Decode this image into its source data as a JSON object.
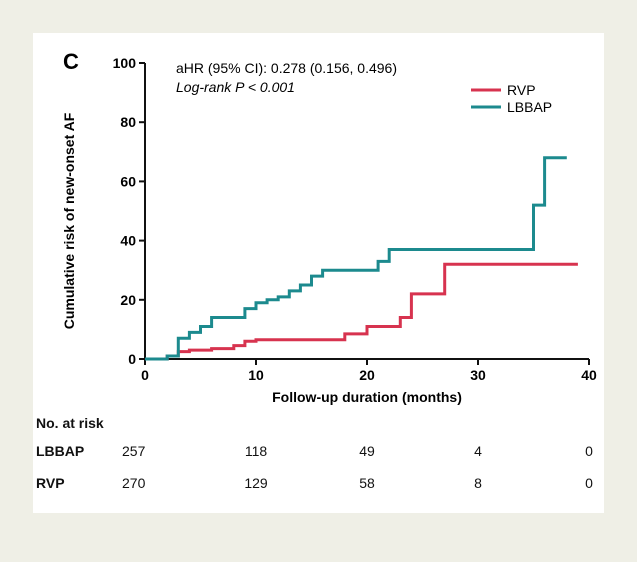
{
  "chart_data": {
    "type": "line",
    "step": true,
    "panel_label": "C",
    "annotation": {
      "hr": "aHR (95% CI): 0.278 (0.156, 0.496)",
      "p": "Log-rank P < 0.001"
    },
    "xlabel": "Follow-up duration (months)",
    "ylabel": "Cumulative risk of new-onset AF",
    "xlim": [
      0,
      40
    ],
    "ylim": [
      0,
      100
    ],
    "xticks": [
      0,
      10,
      20,
      30,
      40
    ],
    "yticks": [
      0,
      20,
      40,
      60,
      80,
      100
    ],
    "grid": false,
    "legend_position": "top-right",
    "series": [
      {
        "name": "RVP",
        "color": "#d7334f",
        "x": [
          0,
          2,
          3,
          4,
          6,
          8,
          9,
          10,
          18,
          20,
          23,
          24,
          27,
          39
        ],
        "y": [
          0,
          1,
          2.5,
          3,
          3.5,
          4.5,
          6,
          6.5,
          8.5,
          11,
          14,
          22,
          32,
          32
        ]
      },
      {
        "name": "LBBAP",
        "color": "#1c8a8e",
        "x": [
          0,
          2,
          3,
          4,
          5,
          6,
          9,
          10,
          11,
          12,
          13,
          14,
          15,
          16,
          21,
          22,
          35,
          36,
          38
        ],
        "y": [
          0,
          1,
          7,
          9,
          11,
          14,
          17,
          19,
          20,
          21,
          23,
          25,
          28,
          30,
          33,
          37,
          52,
          68,
          68
        ]
      }
    ],
    "risk_table": {
      "title": "No. at risk",
      "timepoints": [
        0,
        10,
        20,
        30,
        40
      ],
      "rows": [
        {
          "label": "LBBAP",
          "values": [
            "257",
            "118",
            "49",
            "4",
            "0"
          ]
        },
        {
          "label": "RVP",
          "values": [
            "270",
            "129",
            "58",
            "8",
            "0"
          ]
        }
      ]
    }
  }
}
